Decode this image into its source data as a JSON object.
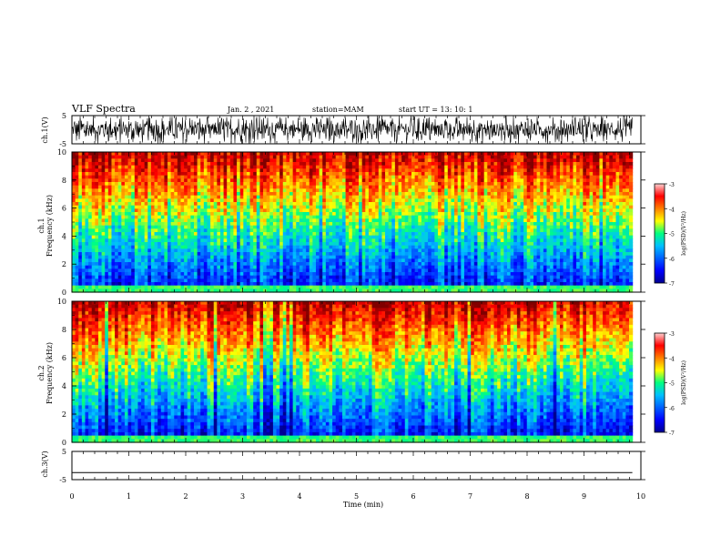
{
  "header": {
    "title": "VLF Spectra",
    "date": "Jan. 2 , 2021",
    "station": "station=MAM",
    "start": "start UT =  13: 10: 1"
  },
  "colorbar": {
    "label": "log(PSD)(V²/Hz)",
    "ticks": [
      "-3",
      "-4",
      "-5",
      "-6",
      "-7"
    ],
    "range": [
      -7,
      -3
    ],
    "colormap": [
      "#00008f",
      "#0000ff",
      "#00c0ff",
      "#00ff80",
      "#ffff00",
      "#ff8000",
      "#ff0000",
      "#800000"
    ]
  },
  "chart_data": [
    {
      "type": "line",
      "panel": "ch1 waveform",
      "ylabel": "ch.1(V)",
      "ylim": [
        -5,
        5
      ],
      "yticks": [
        "5",
        "-5"
      ],
      "xlim": [
        0,
        10
      ],
      "description_values": {
        "min_amplitude": -5,
        "max_amplitude": 5
      }
    },
    {
      "type": "heatmap",
      "panel": "ch1 spectrogram",
      "ylabel": "ch.1\nFrequency (kHz)",
      "ylim": [
        0,
        10
      ],
      "yticks": [
        "0",
        "2",
        "4",
        "6",
        "8",
        "10"
      ],
      "xlim": [
        0,
        9.85
      ],
      "z_range": [
        -7,
        -3
      ]
    },
    {
      "type": "heatmap",
      "panel": "ch2 spectrogram",
      "ylabel": "ch.2\nFrequency (kHz)",
      "ylim": [
        0,
        10
      ],
      "yticks": [
        "0",
        "2",
        "4",
        "6",
        "8",
        "10"
      ],
      "xlim": [
        0,
        9.85
      ],
      "z_range": [
        -7,
        -3
      ]
    },
    {
      "type": "line",
      "panel": "ch3 waveform",
      "ylabel": "ch.3(V)",
      "ylim": [
        -5,
        5
      ],
      "yticks": [
        "5",
        "-5"
      ],
      "x": [
        0,
        9.85
      ],
      "y": [
        -2.5,
        -2.5
      ]
    }
  ],
  "xaxis": {
    "label": "Time (min)",
    "range": [
      0,
      10
    ],
    "ticks": [
      "0",
      "1",
      "2",
      "3",
      "4",
      "5",
      "6",
      "7",
      "8",
      "9",
      "10"
    ]
  }
}
